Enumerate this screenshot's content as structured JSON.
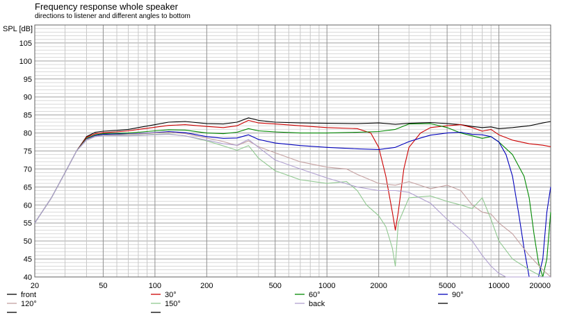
{
  "chart_data": {
    "type": "line",
    "title": "Frequency response whole speaker",
    "subtitle": "directions to listener and different angles to bottom",
    "ylabel": "SPL [dB]",
    "xlabel": "",
    "x_scale": "log",
    "xlim": [
      20,
      20000
    ],
    "ylim": [
      40,
      110
    ],
    "x_ticks": [
      20,
      50,
      100,
      200,
      500,
      1000,
      2000,
      5000,
      10000,
      20000
    ],
    "y_ticks": [
      40,
      45,
      50,
      55,
      60,
      65,
      70,
      75,
      80,
      85,
      90,
      95,
      100,
      105
    ],
    "grid": true,
    "legend_position": "bottom",
    "series": [
      {
        "name": "front",
        "color": "#000000",
        "points": [
          [
            20,
            55
          ],
          [
            25,
            62
          ],
          [
            30,
            69
          ],
          [
            35,
            75
          ],
          [
            40,
            79
          ],
          [
            45,
            80.2
          ],
          [
            50,
            80.5
          ],
          [
            60,
            80.7
          ],
          [
            70,
            81
          ],
          [
            80,
            81.5
          ],
          [
            100,
            82.3
          ],
          [
            120,
            83
          ],
          [
            150,
            83.2
          ],
          [
            200,
            82.6
          ],
          [
            250,
            82.5
          ],
          [
            300,
            83
          ],
          [
            350,
            84.2
          ],
          [
            400,
            83.5
          ],
          [
            500,
            83
          ],
          [
            700,
            82.8
          ],
          [
            1000,
            82.7
          ],
          [
            1500,
            82.6
          ],
          [
            2000,
            82.8
          ],
          [
            2500,
            82.4
          ],
          [
            3000,
            82.7
          ],
          [
            4000,
            82.9
          ],
          [
            5000,
            82.6
          ],
          [
            6000,
            82.3
          ],
          [
            7000,
            81.8
          ],
          [
            8000,
            81.5
          ],
          [
            9000,
            81.7
          ],
          [
            10000,
            81.2
          ],
          [
            12000,
            81.5
          ],
          [
            15000,
            82
          ],
          [
            18000,
            82.8
          ],
          [
            20000,
            83.2
          ]
        ]
      },
      {
        "name": "30°",
        "color": "#cc0000",
        "points": [
          [
            20,
            55
          ],
          [
            25,
            62
          ],
          [
            30,
            69
          ],
          [
            35,
            75
          ],
          [
            40,
            78.8
          ],
          [
            45,
            79.8
          ],
          [
            50,
            80.1
          ],
          [
            60,
            80.3
          ],
          [
            70,
            80.6
          ],
          [
            80,
            81
          ],
          [
            100,
            81.6
          ],
          [
            120,
            82.1
          ],
          [
            150,
            82.3
          ],
          [
            200,
            81.8
          ],
          [
            250,
            81.5
          ],
          [
            300,
            82
          ],
          [
            350,
            83.5
          ],
          [
            400,
            82.8
          ],
          [
            500,
            82.5
          ],
          [
            700,
            82
          ],
          [
            1000,
            81.5
          ],
          [
            1500,
            81.2
          ],
          [
            1800,
            80
          ],
          [
            2000,
            76
          ],
          [
            2200,
            68
          ],
          [
            2400,
            58
          ],
          [
            2500,
            53
          ],
          [
            2600,
            58
          ],
          [
            2800,
            70
          ],
          [
            3000,
            76
          ],
          [
            3500,
            80
          ],
          [
            4000,
            81.5
          ],
          [
            5000,
            82
          ],
          [
            6000,
            82.3
          ],
          [
            7000,
            81.5
          ],
          [
            8000,
            80.5
          ],
          [
            9000,
            81
          ],
          [
            10000,
            79.5
          ],
          [
            12000,
            78
          ],
          [
            15000,
            77
          ],
          [
            18000,
            76.6
          ],
          [
            20000,
            76.2
          ]
        ]
      },
      {
        "name": "60°",
        "color": "#008800",
        "points": [
          [
            20,
            55
          ],
          [
            25,
            62
          ],
          [
            30,
            69
          ],
          [
            35,
            75
          ],
          [
            40,
            78.5
          ],
          [
            45,
            79.5
          ],
          [
            50,
            79.8
          ],
          [
            60,
            79.9
          ],
          [
            70,
            80
          ],
          [
            80,
            80.2
          ],
          [
            100,
            80.6
          ],
          [
            120,
            80.9
          ],
          [
            150,
            80.8
          ],
          [
            200,
            80
          ],
          [
            250,
            79.8
          ],
          [
            300,
            80.2
          ],
          [
            350,
            81.2
          ],
          [
            400,
            80.6
          ],
          [
            500,
            80.3
          ],
          [
            700,
            80
          ],
          [
            1000,
            80
          ],
          [
            1500,
            80.2
          ],
          [
            2000,
            80.4
          ],
          [
            2500,
            81
          ],
          [
            3000,
            82.5
          ],
          [
            4000,
            82.6
          ],
          [
            5000,
            81.5
          ],
          [
            6000,
            80
          ],
          [
            7000,
            79.2
          ],
          [
            8000,
            78.5
          ],
          [
            9000,
            79
          ],
          [
            10000,
            77.5
          ],
          [
            12000,
            74
          ],
          [
            14000,
            68
          ],
          [
            15000,
            62
          ],
          [
            16000,
            52
          ],
          [
            17000,
            44
          ],
          [
            18000,
            40
          ],
          [
            19000,
            45
          ],
          [
            20000,
            58
          ]
        ]
      },
      {
        "name": "90°",
        "color": "#0000bb",
        "points": [
          [
            20,
            55
          ],
          [
            25,
            62
          ],
          [
            30,
            69
          ],
          [
            35,
            75
          ],
          [
            40,
            78.3
          ],
          [
            45,
            79.3
          ],
          [
            50,
            79.6
          ],
          [
            60,
            79.7
          ],
          [
            70,
            79.7
          ],
          [
            80,
            79.8
          ],
          [
            100,
            80.1
          ],
          [
            120,
            80.4
          ],
          [
            150,
            80.1
          ],
          [
            200,
            79
          ],
          [
            250,
            78.5
          ],
          [
            300,
            78.6
          ],
          [
            350,
            79.5
          ],
          [
            400,
            78.2
          ],
          [
            500,
            77.2
          ],
          [
            700,
            76.5
          ],
          [
            1000,
            76
          ],
          [
            1500,
            75.6
          ],
          [
            2000,
            75.4
          ],
          [
            2500,
            76
          ],
          [
            3000,
            77.6
          ],
          [
            3500,
            78.6
          ],
          [
            4000,
            79.4
          ],
          [
            5000,
            80
          ],
          [
            6000,
            80.2
          ],
          [
            7000,
            79.6
          ],
          [
            8000,
            79.5
          ],
          [
            9000,
            79
          ],
          [
            10000,
            77.5
          ],
          [
            11000,
            74
          ],
          [
            12000,
            68
          ],
          [
            13000,
            58
          ],
          [
            14000,
            48
          ],
          [
            15000,
            40
          ],
          [
            17000,
            40
          ],
          [
            18000,
            45
          ],
          [
            19000,
            58
          ],
          [
            20000,
            65
          ]
        ]
      },
      {
        "name": "120°",
        "color": "#c4a0a0",
        "points": [
          [
            20,
            55
          ],
          [
            25,
            62
          ],
          [
            30,
            69
          ],
          [
            35,
            75
          ],
          [
            40,
            78.2
          ],
          [
            45,
            79.1
          ],
          [
            50,
            79.4
          ],
          [
            60,
            79.5
          ],
          [
            70,
            79.6
          ],
          [
            80,
            79.7
          ],
          [
            100,
            80
          ],
          [
            120,
            80.2
          ],
          [
            150,
            79.8
          ],
          [
            200,
            78.6
          ],
          [
            250,
            77.6
          ],
          [
            300,
            76.5
          ],
          [
            350,
            77.8
          ],
          [
            400,
            76.2
          ],
          [
            500,
            74.5
          ],
          [
            700,
            72
          ],
          [
            1000,
            70.5
          ],
          [
            1300,
            70
          ],
          [
            1500,
            68.5
          ],
          [
            2000,
            66
          ],
          [
            2500,
            65.5
          ],
          [
            3000,
            66.5
          ],
          [
            4000,
            64.5
          ],
          [
            5000,
            65.5
          ],
          [
            6000,
            64
          ],
          [
            7000,
            60
          ],
          [
            8000,
            58
          ],
          [
            9000,
            57.5
          ],
          [
            10000,
            55
          ],
          [
            12000,
            52
          ],
          [
            15000,
            46
          ],
          [
            18000,
            42
          ],
          [
            20000,
            40
          ]
        ]
      },
      {
        "name": "150°",
        "color": "#90c890",
        "points": [
          [
            20,
            55
          ],
          [
            25,
            62
          ],
          [
            30,
            69
          ],
          [
            35,
            75
          ],
          [
            40,
            78
          ],
          [
            45,
            79
          ],
          [
            50,
            79.3
          ],
          [
            60,
            79.3
          ],
          [
            70,
            79.3
          ],
          [
            80,
            79.4
          ],
          [
            100,
            79.6
          ],
          [
            120,
            79.7
          ],
          [
            150,
            79.2
          ],
          [
            200,
            77.8
          ],
          [
            250,
            76.4
          ],
          [
            300,
            75.2
          ],
          [
            350,
            76.5
          ],
          [
            400,
            73
          ],
          [
            500,
            69.5
          ],
          [
            700,
            67
          ],
          [
            1000,
            66
          ],
          [
            1300,
            66.5
          ],
          [
            1500,
            64
          ],
          [
            1700,
            60
          ],
          [
            2000,
            57
          ],
          [
            2200,
            54
          ],
          [
            2400,
            48
          ],
          [
            2500,
            43
          ],
          [
            2600,
            55
          ],
          [
            3000,
            62
          ],
          [
            4000,
            62.5
          ],
          [
            5000,
            61
          ],
          [
            6000,
            60
          ],
          [
            7000,
            59
          ],
          [
            8000,
            62
          ],
          [
            9000,
            56
          ],
          [
            10000,
            50
          ],
          [
            12000,
            45
          ],
          [
            15000,
            42
          ],
          [
            18000,
            40
          ],
          [
            20000,
            40
          ]
        ]
      },
      {
        "name": "back",
        "color": "#b0a0d0",
        "points": [
          [
            20,
            55
          ],
          [
            25,
            62
          ],
          [
            30,
            69
          ],
          [
            35,
            75
          ],
          [
            40,
            78
          ],
          [
            45,
            79
          ],
          [
            50,
            79.2
          ],
          [
            60,
            79.2
          ],
          [
            70,
            79.2
          ],
          [
            80,
            79.3
          ],
          [
            100,
            79.5
          ],
          [
            120,
            79.6
          ],
          [
            150,
            79.2
          ],
          [
            200,
            78
          ],
          [
            250,
            77
          ],
          [
            300,
            76.6
          ],
          [
            350,
            78.2
          ],
          [
            400,
            76
          ],
          [
            500,
            72.5
          ],
          [
            700,
            70
          ],
          [
            1000,
            67.5
          ],
          [
            1500,
            65
          ],
          [
            2000,
            64
          ],
          [
            2500,
            64
          ],
          [
            3000,
            63.5
          ],
          [
            4000,
            60.5
          ],
          [
            5000,
            56
          ],
          [
            6000,
            53
          ],
          [
            7000,
            50
          ],
          [
            8000,
            46
          ],
          [
            9000,
            43
          ],
          [
            10000,
            41
          ],
          [
            11000,
            40
          ],
          [
            20000,
            40
          ]
        ]
      }
    ]
  }
}
